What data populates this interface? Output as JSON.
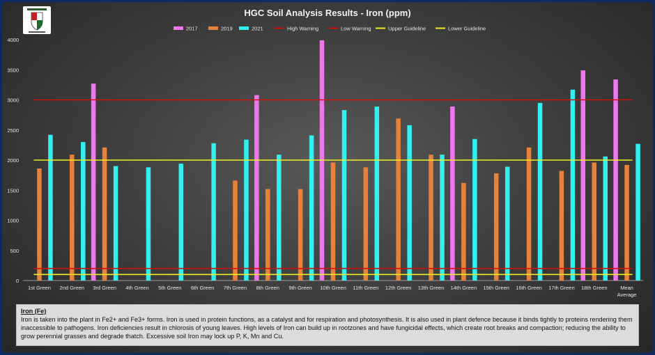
{
  "logo_text": "HADLEY GOLF CLUB 125 YEARS",
  "chart_data": {
    "type": "bar",
    "title": "HGC Soil Analysis Results - Iron (ppm)",
    "categories": [
      "1st Green",
      "2nd Green",
      "3rd Green",
      "4th Green",
      "5th Green",
      "6th Green",
      "7th Green",
      "8th Green",
      "9th Green",
      "10th Green",
      "11th Green",
      "12th Green",
      "13th Green",
      "14th Green",
      "15th Green",
      "16th Green",
      "17th Green",
      "18th Green",
      "Mean Average"
    ],
    "ylim": [
      0,
      4000
    ],
    "yticks": [
      0,
      500,
      1000,
      1500,
      2000,
      2500,
      3000,
      3500,
      4000
    ],
    "series": [
      {
        "name": "2017",
        "color": "#ee77ee",
        "values": [
          null,
          null,
          3270,
          null,
          null,
          null,
          null,
          3080,
          null,
          3990,
          null,
          null,
          null,
          2890,
          null,
          null,
          null,
          3490,
          3340
        ]
      },
      {
        "name": "2019",
        "color": "#e8823a",
        "values": [
          1860,
          2090,
          2210,
          null,
          null,
          null,
          1660,
          1520,
          1520,
          1960,
          1880,
          2690,
          2090,
          1620,
          1780,
          2210,
          1820,
          1960,
          1920
        ]
      },
      {
        "name": "2021",
        "color": "#33f0f0",
        "values": [
          2420,
          2300,
          1900,
          1880,
          1940,
          2280,
          2340,
          2090,
          2410,
          2830,
          2890,
          2580,
          2090,
          2350,
          1890,
          2950,
          3170,
          2060,
          2270
        ]
      }
    ],
    "lines": [
      {
        "name": "High Warning",
        "color": "#cc1111",
        "value": 3000
      },
      {
        "name": "Low Warning",
        "color": "#cc1111",
        "value": 200
      },
      {
        "name": "Upper Guideline",
        "color": "#f2ee22",
        "value": 2000
      },
      {
        "name": "Lower Guideline",
        "color": "#f2ee22",
        "value": 100
      }
    ],
    "legend_position": "top-center",
    "grid": false
  },
  "description": {
    "heading": "Iron (Fe)",
    "body": "Iron is taken into the plant in Fe2+ and Fe3+ forms. Iron is used in protein functions, as a catalyst and for respiration and photosynthesis. It is also used in plant defence because it binds tightly to proteins rendering them inaccessible to pathogens. Iron deficiencies result in chlorosis of young leaves. High levels of Iron can build up in rootzones and have fungicidal effects, which create root breaks and compaction; reducing the ability to grow perennial grasses and degrade thatch. Excessive soil Iron may lock up P, K, Mn and Cu."
  }
}
